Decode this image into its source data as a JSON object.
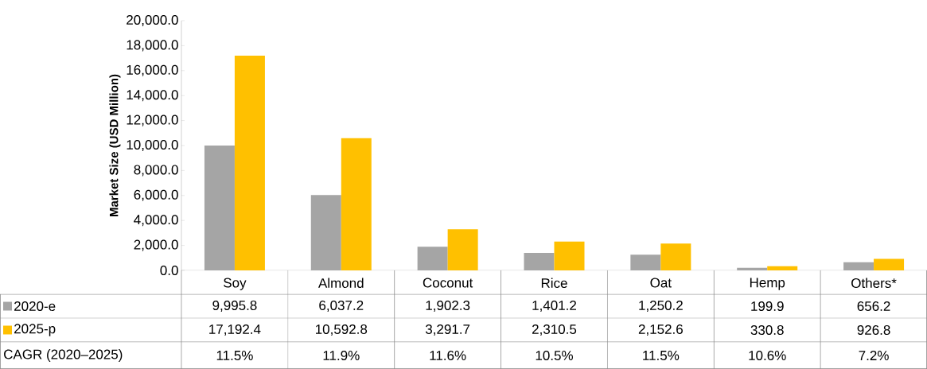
{
  "chart_data": {
    "type": "bar",
    "ylabel": "Market Size (USD Million)",
    "categories": [
      "Soy",
      "Almond",
      "Coconut",
      "Rice",
      "Oat",
      "Hemp",
      "Others*"
    ],
    "series": [
      {
        "name": "2020-e",
        "color": "#a5a5a5",
        "values": [
          9995.8,
          6037.2,
          1902.3,
          1401.2,
          1250.2,
          199.9,
          656.2
        ],
        "value_labels": [
          "9,995.8",
          "6,037.2",
          "1,902.3",
          "1,401.2",
          "1,250.2",
          "199.9",
          "656.2"
        ]
      },
      {
        "name": "2025-p",
        "color": "#ffc000",
        "values": [
          17192.4,
          10592.8,
          3291.7,
          2310.5,
          2152.6,
          330.8,
          926.8
        ],
        "value_labels": [
          "17,192.4",
          "10,592.8",
          "3,291.7",
          "2,310.5",
          "2,152.6",
          "330.8",
          "926.8"
        ]
      }
    ],
    "ylim": [
      0,
      20000
    ],
    "yticks": [
      {
        "value": 0,
        "label": "0.0"
      },
      {
        "value": 2000,
        "label": "2,000.0"
      },
      {
        "value": 4000,
        "label": "4,000.0"
      },
      {
        "value": 6000,
        "label": "6,000.0"
      },
      {
        "value": 8000,
        "label": "8,000.0"
      },
      {
        "value": 10000,
        "label": "10,000.0"
      },
      {
        "value": 12000,
        "label": "12,000.0"
      },
      {
        "value": 14000,
        "label": "14,000.0"
      },
      {
        "value": 16000,
        "label": "16,000.0"
      },
      {
        "value": 18000,
        "label": "18,000.0"
      },
      {
        "value": 20000,
        "label": "20,000.0"
      }
    ],
    "legend": "bottom left",
    "annotations": [
      "CAGR (2020–2025)",
      "11.5%",
      "11.9%",
      "11.6%",
      "10.5%",
      "11.5%",
      "10.6%",
      "7.2%"
    ]
  }
}
